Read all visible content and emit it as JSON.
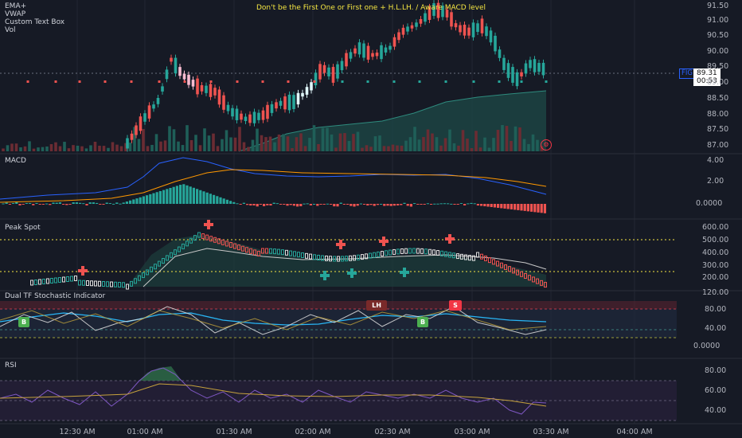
{
  "chart_title": "Don't be the First One or First one + H.L.LH. / Aware MACD level",
  "indicators_main": [
    "EMA+",
    "VWAP",
    "Custom Text Box",
    "Vol"
  ],
  "symbol_tag": "FIG",
  "last_price": "89.31",
  "countdown": "00:53",
  "panes": {
    "macd": "MACD",
    "peak_spot": "Peak Spot",
    "stoch": "Dual TF Stochastic Indicator",
    "rsi": "RSI"
  },
  "price_axis": [
    "91.50",
    "91.00",
    "90.50",
    "90.00",
    "89.50",
    "89.00",
    "88.50",
    "88.00",
    "87.50",
    "87.00"
  ],
  "macd_axis": [
    "4.00",
    "2.00",
    "0.0000"
  ],
  "peak_axis": [
    "600.00",
    "500.00",
    "400.00",
    "300.00",
    "200.00",
    "120.00"
  ],
  "stoch_axis": [
    "80.00",
    "40.00",
    "0.0000"
  ],
  "rsi_axis": [
    "80.00",
    "60.00",
    "40.00"
  ],
  "time_axis": [
    "12:30 AM",
    "01:00 AM",
    "01:30 AM",
    "02:00 AM",
    "02:30 AM",
    "03:00 AM",
    "03:30 AM",
    "04:00 AM"
  ],
  "markers": {
    "b1": "B",
    "b2": "B",
    "s": "S",
    "lh": "LH"
  },
  "colors": {
    "up": "#26a69a",
    "down": "#ef5350",
    "background": "#161a25",
    "accent": "#2962ff",
    "title": "#f5e642"
  },
  "icons": {
    "gear": "gear-icon"
  }
}
